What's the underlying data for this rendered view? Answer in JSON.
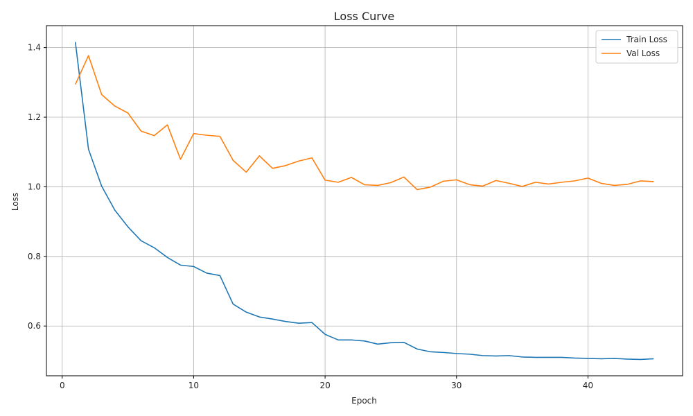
{
  "chart_data": {
    "type": "line",
    "title": "Loss Curve",
    "xlabel": "Epoch",
    "ylabel": "Loss",
    "xlim": [
      -1.2,
      47.2
    ],
    "ylim": [
      0.457,
      1.463
    ],
    "xticks": [
      0,
      10,
      20,
      30,
      40
    ],
    "yticks": [
      0.6,
      0.8,
      1.0,
      1.2,
      1.4
    ],
    "ytick_labels": [
      "0.6",
      "0.8",
      "1.0",
      "1.2",
      "1.4"
    ],
    "grid": true,
    "legend_position": "top-right",
    "x": [
      1,
      2,
      3,
      4,
      5,
      6,
      7,
      8,
      9,
      10,
      11,
      12,
      13,
      14,
      15,
      16,
      17,
      18,
      19,
      20,
      21,
      22,
      23,
      24,
      25,
      26,
      27,
      28,
      29,
      30,
      31,
      32,
      33,
      34,
      35,
      36,
      37,
      38,
      39,
      40,
      41,
      42,
      43,
      44,
      45
    ],
    "series": [
      {
        "name": "Train Loss",
        "color": "#1f77b4",
        "values": [
          1.416,
          1.108,
          1.002,
          0.933,
          0.885,
          0.845,
          0.825,
          0.797,
          0.775,
          0.771,
          0.752,
          0.745,
          0.663,
          0.64,
          0.626,
          0.62,
          0.613,
          0.608,
          0.61,
          0.576,
          0.56,
          0.56,
          0.557,
          0.548,
          0.552,
          0.553,
          0.534,
          0.526,
          0.524,
          0.521,
          0.519,
          0.515,
          0.514,
          0.515,
          0.511,
          0.51,
          0.51,
          0.51,
          0.508,
          0.507,
          0.506,
          0.507,
          0.505,
          0.504,
          0.506
        ]
      },
      {
        "name": "Val Loss",
        "color": "#ff7f0e",
        "values": [
          1.294,
          1.377,
          1.265,
          1.232,
          1.212,
          1.16,
          1.147,
          1.178,
          1.079,
          1.153,
          1.148,
          1.145,
          1.076,
          1.042,
          1.089,
          1.053,
          1.061,
          1.074,
          1.083,
          1.019,
          1.013,
          1.027,
          1.006,
          1.004,
          1.012,
          1.028,
          0.992,
          0.999,
          1.016,
          1.02,
          1.006,
          1.002,
          1.018,
          1.01,
          1.001,
          1.013,
          1.008,
          1.013,
          1.017,
          1.025,
          1.01,
          1.004,
          1.007,
          1.017,
          1.015
        ]
      }
    ]
  }
}
